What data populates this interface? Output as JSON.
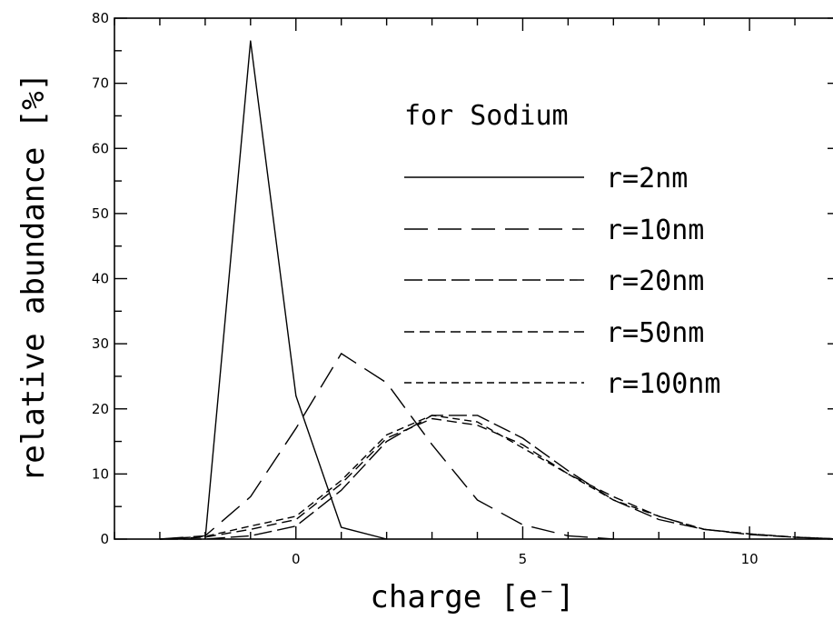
{
  "chart_data": {
    "type": "line",
    "title": "",
    "xlabel": "charge [e⁻]",
    "ylabel": "relative abundance [%]",
    "xlim": [
      -4,
      12
    ],
    "ylim": [
      0,
      80
    ],
    "xticks": [
      0,
      5,
      10
    ],
    "yticks": [
      0,
      10,
      20,
      30,
      40,
      50,
      60,
      70,
      80
    ],
    "grid": false,
    "legend_title": "for Sodium",
    "legend_placement": "top-right",
    "series": [
      {
        "name": "r=2nm",
        "dash": "solid",
        "x": [
          -2,
          -1,
          0,
          1,
          2
        ],
        "y": [
          0,
          76.5,
          22,
          1.8,
          0
        ]
      },
      {
        "name": "r=10nm",
        "dash": "long-dash",
        "x": [
          -3,
          -2,
          -1,
          0,
          1,
          2,
          3,
          4,
          5,
          6,
          7
        ],
        "y": [
          0,
          0.5,
          6.5,
          17,
          28.5,
          24,
          14.5,
          6,
          2.2,
          0.5,
          0
        ]
      },
      {
        "name": "r=20nm",
        "dash": "long-short",
        "x": [
          -3,
          -2,
          -1,
          0,
          1,
          2,
          3,
          4,
          5,
          6,
          7,
          8,
          9,
          10,
          11,
          12
        ],
        "y": [
          0,
          0,
          0.5,
          2,
          7.5,
          15,
          19,
          19,
          15.5,
          10.5,
          6,
          3,
          1.5,
          0.7,
          0.3,
          0
        ]
      },
      {
        "name": "r=50nm",
        "dash": "medium-dash",
        "x": [
          -3,
          -2,
          -1,
          0,
          1,
          2,
          3,
          4,
          5,
          6,
          7,
          8,
          9,
          10,
          11,
          12
        ],
        "y": [
          0,
          0.3,
          1.5,
          3,
          8.5,
          15.5,
          18.5,
          17.5,
          14.5,
          10,
          6.5,
          3.5,
          1.5,
          0.8,
          0.3,
          0
        ]
      },
      {
        "name": "r=100nm",
        "dash": "short-dash",
        "x": [
          -3,
          -2,
          -1,
          0,
          1,
          2,
          3,
          4,
          5,
          6,
          7,
          8,
          9,
          10,
          11,
          12
        ],
        "y": [
          0,
          0.4,
          2,
          3.5,
          9,
          16,
          19,
          18,
          14,
          10,
          6,
          3.5,
          1.5,
          0.8,
          0.3,
          0
        ]
      }
    ]
  }
}
